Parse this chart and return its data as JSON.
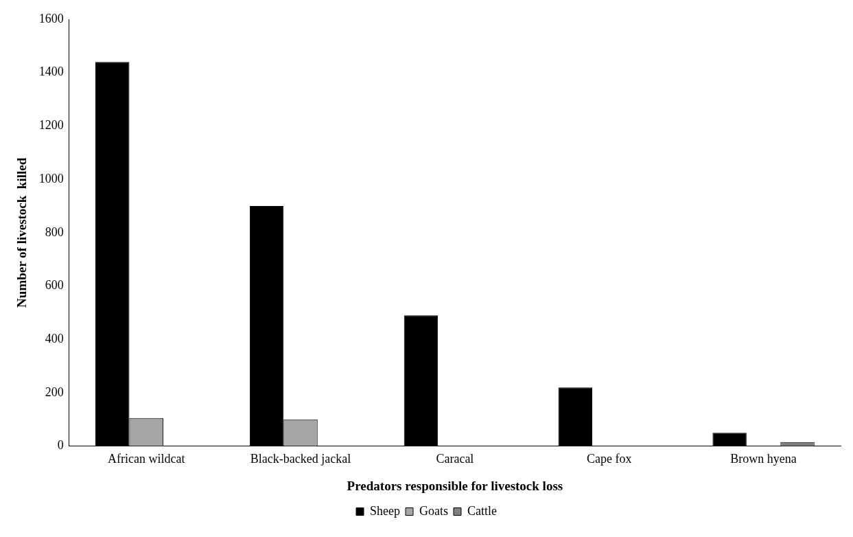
{
  "chart_data": {
    "type": "bar",
    "xlabel": "Predators responsible for livestock loss",
    "ylabel": "Number of livestock  killed",
    "categories": [
      "African wildcat",
      "Black-backed jackal",
      "Caracal",
      "Cape fox",
      "Brown hyena"
    ],
    "series": [
      {
        "name": "Sheep",
        "color": "#000000",
        "values": [
          1440,
          900,
          490,
          220,
          50
        ]
      },
      {
        "name": "Goats",
        "color": "#a6a6a6",
        "values": [
          105,
          100,
          0,
          0,
          0
        ]
      },
      {
        "name": "Cattle",
        "color": "#808080",
        "values": [
          0,
          0,
          0,
          0,
          15
        ]
      }
    ],
    "ylim": [
      0,
      1600
    ],
    "yticks": [
      0,
      200,
      400,
      600,
      800,
      1000,
      1200,
      1400,
      1600
    ],
    "grid": false,
    "legend": "bottom"
  }
}
